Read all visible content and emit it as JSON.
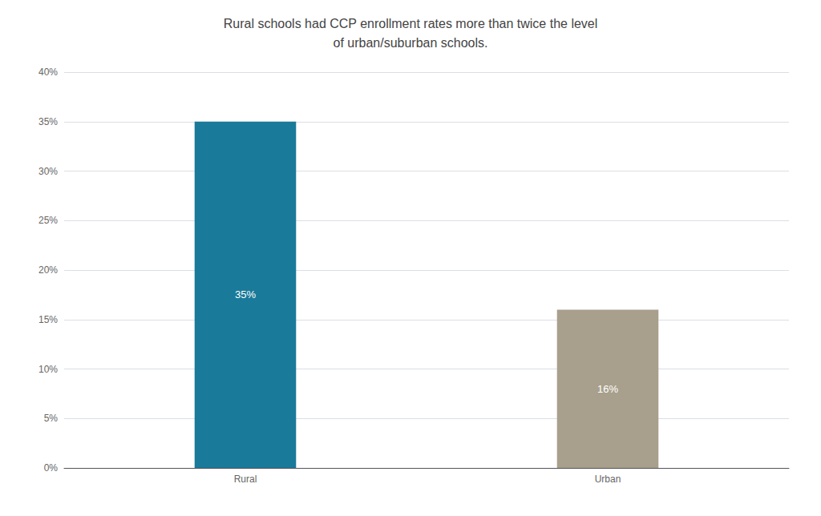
{
  "chart_data": {
    "type": "bar",
    "title": "Rural schools had CCP enrollment rates more than twice the level\nof urban/suburban schools.",
    "categories": [
      "Rural",
      "Urban"
    ],
    "values": [
      0.35,
      0.16
    ],
    "value_labels": [
      "35%",
      "16%"
    ],
    "colors": [
      "#1a7a9a",
      "#a89f8c"
    ],
    "ylim": [
      0,
      0.4
    ],
    "yticks": [
      {
        "value": 0.0,
        "label": "0%"
      },
      {
        "value": 0.05,
        "label": "5%"
      },
      {
        "value": 0.1,
        "label": "10%"
      },
      {
        "value": 0.15,
        "label": "15%"
      },
      {
        "value": 0.2,
        "label": "20%"
      },
      {
        "value": 0.25,
        "label": "25%"
      },
      {
        "value": 0.3,
        "label": "30%"
      },
      {
        "value": 0.35,
        "label": "35%"
      },
      {
        "value": 0.4,
        "label": "40%"
      }
    ],
    "grid": true,
    "data_labels": true
  }
}
